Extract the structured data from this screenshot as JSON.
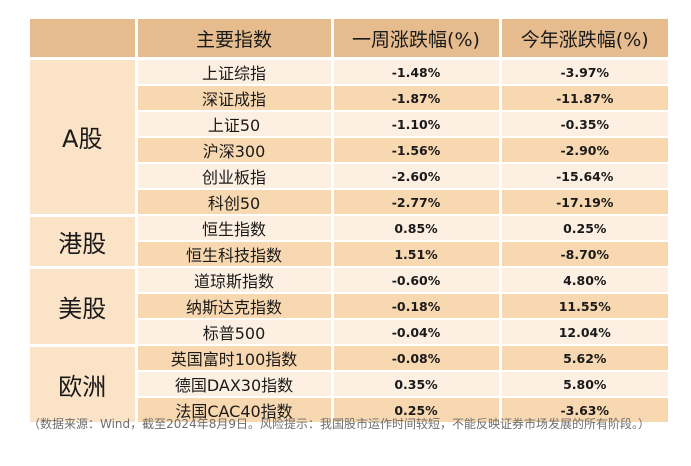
{
  "header": {
    "col1": "主要指数",
    "col2": "一周涨跌幅(%)",
    "col3": "今年涨跌幅(%)"
  },
  "groups": [
    {
      "name": "A股",
      "rows": [
        {
          "index": "上证综指",
          "week": "-1.48%",
          "ytd": "-3.97%"
        },
        {
          "index": "深证成指",
          "week": "-1.87%",
          "ytd": "-11.87%"
        },
        {
          "index": "上证50",
          "week": "-1.10%",
          "ytd": "-0.35%"
        },
        {
          "index": "沪深300",
          "week": "-1.56%",
          "ytd": "-2.90%"
        },
        {
          "index": "创业板指",
          "week": "-2.60%",
          "ytd": "-15.64%"
        },
        {
          "index": "科创50",
          "week": "-2.77%",
          "ytd": "-17.19%"
        }
      ]
    },
    {
      "name": "港股",
      "rows": [
        {
          "index": "恒生指数",
          "week": "0.85%",
          "ytd": "0.25%"
        },
        {
          "index": "恒生科技指数",
          "week": "1.51%",
          "ytd": "-8.70%"
        }
      ]
    },
    {
      "name": "美股",
      "rows": [
        {
          "index": "道琼斯指数",
          "week": "-0.60%",
          "ytd": "4.80%"
        },
        {
          "index": "纳斯达克指数",
          "week": "-0.18%",
          "ytd": "11.55%"
        },
        {
          "index": "标普500",
          "week": "-0.04%",
          "ytd": "12.04%"
        }
      ]
    },
    {
      "name": "欧洲",
      "rows": [
        {
          "index": "英国富时100指数",
          "week": "-0.08%",
          "ytd": "5.62%"
        },
        {
          "index": "德国DAX30指数",
          "week": "0.35%",
          "ytd": "5.80%"
        },
        {
          "index": "法国CAC40指数",
          "week": "0.25%",
          "ytd": "-3.63%"
        }
      ]
    }
  ],
  "note": "（数据来源：Wind，截至2024年8月9日。风险提示：我国股市运作时间较短，不能反映证券市场发展的所有阶段。）"
}
